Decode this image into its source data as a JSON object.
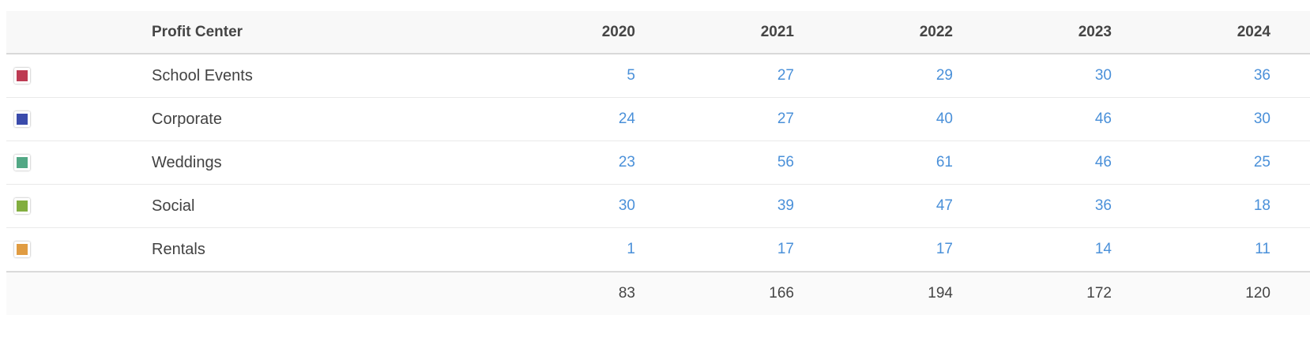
{
  "table": {
    "header": {
      "label_column": "Profit Center",
      "years": [
        "2020",
        "2021",
        "2022",
        "2023",
        "2024"
      ]
    },
    "rows": [
      {
        "label": "School Events",
        "color": "#bd3b53",
        "values": [
          "5",
          "27",
          "29",
          "30",
          "36"
        ]
      },
      {
        "label": "Corporate",
        "color": "#3a4bab",
        "values": [
          "24",
          "27",
          "40",
          "46",
          "30"
        ]
      },
      {
        "label": "Weddings",
        "color": "#52a885",
        "values": [
          "23",
          "56",
          "61",
          "46",
          "25"
        ]
      },
      {
        "label": "Social",
        "color": "#82ae3f",
        "values": [
          "30",
          "39",
          "47",
          "36",
          "18"
        ]
      },
      {
        "label": "Rentals",
        "color": "#e09c42",
        "values": [
          "1",
          "17",
          "17",
          "14",
          "11"
        ]
      }
    ],
    "totals": [
      "83",
      "166",
      "194",
      "172",
      "120"
    ]
  },
  "chart_data": {
    "type": "table",
    "title": "Profit Center",
    "categories": [
      "2020",
      "2021",
      "2022",
      "2023",
      "2024"
    ],
    "series": [
      {
        "name": "School Events",
        "color": "#bd3b53",
        "values": [
          5,
          27,
          29,
          30,
          36
        ]
      },
      {
        "name": "Corporate",
        "color": "#3a4bab",
        "values": [
          24,
          27,
          40,
          46,
          30
        ]
      },
      {
        "name": "Weddings",
        "color": "#52a885",
        "values": [
          23,
          56,
          61,
          46,
          25
        ]
      },
      {
        "name": "Social",
        "color": "#82ae3f",
        "values": [
          30,
          39,
          47,
          36,
          18
        ]
      },
      {
        "name": "Rentals",
        "color": "#e09c42",
        "values": [
          1,
          17,
          17,
          14,
          11
        ]
      }
    ],
    "totals": [
      83,
      166,
      194,
      172,
      120
    ],
    "layout": {
      "value_alignment": "right",
      "row_swatch_legend": true,
      "totals_row": true
    }
  },
  "colors": {
    "header_bg": "#f8f8f8",
    "totals_bg": "#fafafa",
    "value_link": "#4a90d9",
    "header_text": "#454545",
    "label_text": "#424242",
    "row_divider": "#e9e9e9"
  }
}
